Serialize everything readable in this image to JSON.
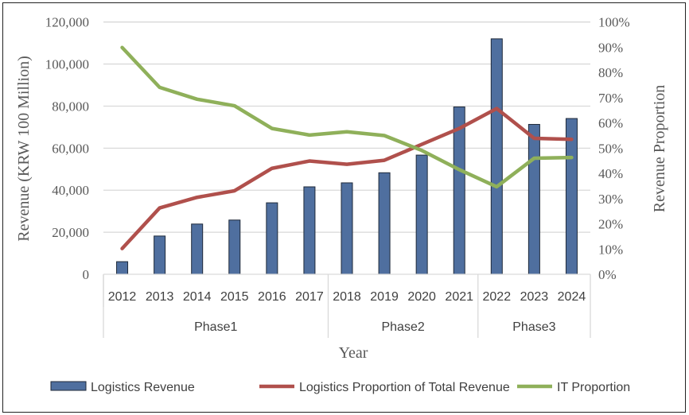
{
  "chart_data": {
    "type": "bar+line",
    "categories": [
      "2012",
      "2013",
      "2014",
      "2015",
      "2016",
      "2017",
      "2018",
      "2019",
      "2020",
      "2021",
      "2022",
      "2023",
      "2024"
    ],
    "groups": [
      {
        "label": "Phase1",
        "count": 6
      },
      {
        "label": "Phase2",
        "count": 4
      },
      {
        "label": "Phase3",
        "count": 3
      }
    ],
    "xlabel": "Year",
    "ylabel": "Revenue (KRW 100 Million)",
    "y2label": "Revenue Proportion",
    "ylim": [
      0,
      120000
    ],
    "yticks": [
      "0",
      "20,000",
      "40,000",
      "60,000",
      "80,000",
      "100,000",
      "120,000"
    ],
    "y2lim": [
      0,
      100
    ],
    "y2ticks": [
      "0%",
      "10%",
      "20%",
      "30%",
      "40%",
      "50%",
      "60%",
      "70%",
      "80%",
      "90%",
      "100%"
    ],
    "grid": true,
    "legend_position": "bottom",
    "series": [
      {
        "name": "Logistics Revenue",
        "type": "bar",
        "axis": "left",
        "color": "#4f6f9f",
        "values": [
          6000,
          18200,
          23900,
          25800,
          34000,
          41600,
          43500,
          48300,
          56700,
          79600,
          112000,
          71300,
          74100
        ]
      },
      {
        "name": "Logistics Proportion of Total Revenue",
        "type": "line",
        "axis": "right",
        "color": "#b0504c",
        "values": [
          10.2,
          26.3,
          30.5,
          33.1,
          42.0,
          44.9,
          43.6,
          45.2,
          51.5,
          57.8,
          65.7,
          53.9,
          53.5
        ]
      },
      {
        "name": "IT Proportion",
        "type": "line",
        "axis": "right",
        "color": "#8fb05a",
        "values": [
          89.9,
          74.1,
          69.4,
          66.8,
          57.8,
          55.2,
          56.5,
          55.0,
          49.1,
          41.5,
          34.7,
          46.0,
          46.3
        ]
      }
    ]
  }
}
